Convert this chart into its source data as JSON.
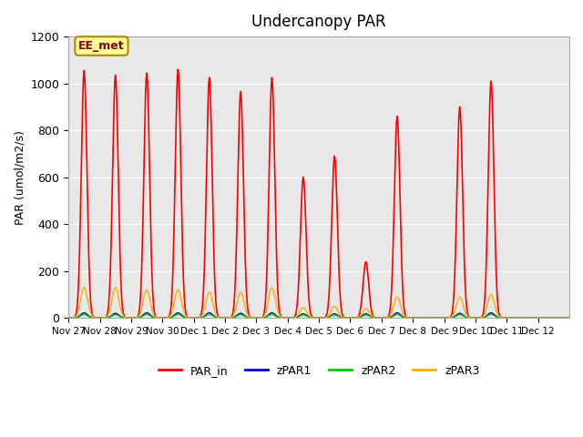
{
  "title": "Undercanopy PAR",
  "ylabel": "PAR (umol/m2/s)",
  "ylim": [
    0,
    1200
  ],
  "background_color": "#e8e8e8",
  "annotation_text": "EE_met",
  "annotation_bg": "#ffff99",
  "annotation_border": "#aa8800",
  "series_colors": {
    "PAR_in": "#ff0000",
    "zPAR1": "#0000cc",
    "zPAR2": "#00cc00",
    "zPAR3": "#ffaa00"
  },
  "xtick_labels": [
    "Nov 27",
    "Nov 28",
    "Nov 29",
    "Nov 30",
    "Dec 1",
    "Dec 2",
    "Dec 3",
    "Dec 4",
    "Dec 5",
    "Dec 6",
    "Dec 7",
    "Dec 8",
    "Dec 9",
    "Dec 10",
    "Dec 11",
    "Dec 12"
  ],
  "ytick_labels": [
    0,
    200,
    400,
    600,
    800,
    1000,
    1200
  ],
  "n_days": 16,
  "pts_per_day": 48,
  "par_in_peaks": [
    1055,
    1035,
    1045,
    1060,
    1025,
    965,
    1025,
    600,
    690,
    240,
    860,
    0,
    900,
    1010,
    0,
    0
  ],
  "zpar1_peaks": [
    22,
    20,
    22,
    22,
    22,
    20,
    22,
    18,
    18,
    18,
    22,
    0,
    20,
    22,
    0,
    0
  ],
  "zpar2_peaks": [
    15,
    14,
    15,
    15,
    15,
    14,
    15,
    13,
    13,
    13,
    15,
    0,
    14,
    15,
    0,
    0
  ],
  "zpar3_peaks": [
    130,
    130,
    120,
    120,
    110,
    110,
    130,
    45,
    50,
    40,
    90,
    0,
    90,
    100,
    0,
    0
  ]
}
